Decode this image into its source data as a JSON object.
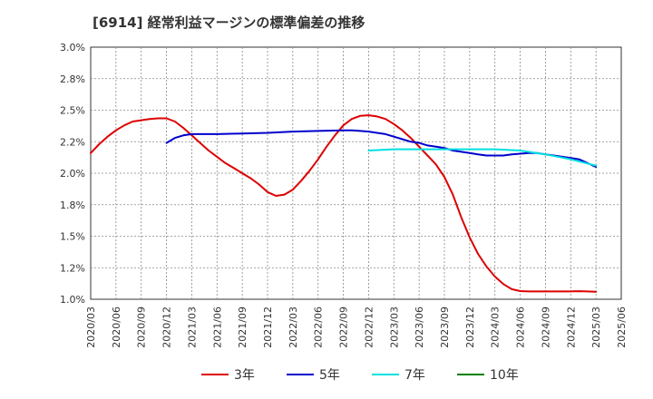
{
  "chart_data": {
    "type": "line",
    "title": "[6914]  経常利益マージンの標準偏差の推移",
    "xlabel": "",
    "ylabel": "",
    "ylim": [
      1.0,
      3.0
    ],
    "y_ticks": [
      "3.0%",
      "2.8%",
      "2.5%",
      "2.2%",
      "2.0%",
      "1.8%",
      "1.5%",
      "1.2%",
      "1.0%"
    ],
    "x_ticks": [
      "2020/03",
      "2020/06",
      "2020/09",
      "2020/12",
      "2021/03",
      "2021/06",
      "2021/09",
      "2021/12",
      "2022/03",
      "2022/06",
      "2022/09",
      "2022/12",
      "2023/03",
      "2023/06",
      "2023/09",
      "2023/12",
      "2024/03",
      "2024/06",
      "2024/09",
      "2024/12",
      "2025/03",
      "2025/06"
    ],
    "grid": true,
    "legend_position": "bottom",
    "series": [
      {
        "name": "3年",
        "color": "#dd0000",
        "x": [
          "2020/03",
          "2020/04",
          "2020/05",
          "2020/06",
          "2020/07",
          "2020/08",
          "2020/09",
          "2020/10",
          "2020/11",
          "2020/12",
          "2021/01",
          "2021/02",
          "2021/03",
          "2021/04",
          "2021/05",
          "2021/06",
          "2021/07",
          "2021/08",
          "2021/09",
          "2021/10",
          "2021/11",
          "2021/12",
          "2022/01",
          "2022/02",
          "2022/03",
          "2022/04",
          "2022/05",
          "2022/06",
          "2022/07",
          "2022/08",
          "2022/09",
          "2022/10",
          "2022/11",
          "2022/12",
          "2023/01",
          "2023/02",
          "2023/03",
          "2023/04",
          "2023/05",
          "2023/06",
          "2023/07",
          "2023/08",
          "2023/09",
          "2023/10",
          "2023/11",
          "2023/12",
          "2024/01",
          "2024/02",
          "2024/03",
          "2024/04",
          "2024/05",
          "2024/06",
          "2024/07",
          "2024/08",
          "2024/09",
          "2024/10",
          "2024/11",
          "2024/12",
          "2025/01",
          "2025/02",
          "2025/03"
        ],
        "values": [
          2.16,
          2.23,
          2.29,
          2.34,
          2.38,
          2.41,
          2.42,
          2.43,
          2.435,
          2.435,
          2.41,
          2.36,
          2.3,
          2.24,
          2.18,
          2.13,
          2.08,
          2.04,
          2.0,
          1.96,
          1.91,
          1.85,
          1.82,
          1.83,
          1.87,
          1.94,
          2.02,
          2.11,
          2.21,
          2.3,
          2.38,
          2.43,
          2.455,
          2.46,
          2.45,
          2.43,
          2.39,
          2.34,
          2.28,
          2.21,
          2.14,
          2.07,
          1.97,
          1.83,
          1.65,
          1.49,
          1.36,
          1.26,
          1.18,
          1.12,
          1.08,
          1.065,
          1.062,
          1.062,
          1.062,
          1.062,
          1.062,
          1.062,
          1.064,
          1.062,
          1.06
        ]
      },
      {
        "name": "5年",
        "color": "#0000cc",
        "x": [
          "2020/12",
          "2021/01",
          "2021/02",
          "2021/03",
          "2021/06",
          "2021/09",
          "2021/12",
          "2022/03",
          "2022/06",
          "2022/09",
          "2022/10",
          "2022/11",
          "2022/12",
          "2023/01",
          "2023/02",
          "2023/03",
          "2023/04",
          "2023/05",
          "2023/06",
          "2023/07",
          "2023/08",
          "2023/09",
          "2023/10",
          "2023/11",
          "2023/12",
          "2024/01",
          "2024/02",
          "2024/03",
          "2024/04",
          "2024/05",
          "2024/06",
          "2024/07",
          "2024/08",
          "2024/09",
          "2024/10",
          "2024/11",
          "2024/12",
          "2025/01",
          "2025/02",
          "2025/03"
        ],
        "values": [
          2.24,
          2.28,
          2.3,
          2.31,
          2.31,
          2.315,
          2.32,
          2.33,
          2.335,
          2.34,
          2.34,
          2.335,
          2.33,
          2.32,
          2.31,
          2.29,
          2.27,
          2.25,
          2.24,
          2.22,
          2.21,
          2.2,
          2.18,
          2.17,
          2.16,
          2.15,
          2.14,
          2.14,
          2.14,
          2.15,
          2.155,
          2.16,
          2.16,
          2.15,
          2.14,
          2.13,
          2.12,
          2.11,
          2.08,
          2.05
        ]
      },
      {
        "name": "7年",
        "color": "#00e0e0",
        "x": [
          "2022/12",
          "2023/03",
          "2023/06",
          "2023/09",
          "2023/12",
          "2024/03",
          "2024/06",
          "2024/09",
          "2024/12",
          "2025/03"
        ],
        "values": [
          2.18,
          2.19,
          2.19,
          2.19,
          2.19,
          2.19,
          2.18,
          2.15,
          2.11,
          2.06
        ]
      },
      {
        "name": "10年",
        "color": "#008000",
        "x": [],
        "values": []
      }
    ]
  }
}
